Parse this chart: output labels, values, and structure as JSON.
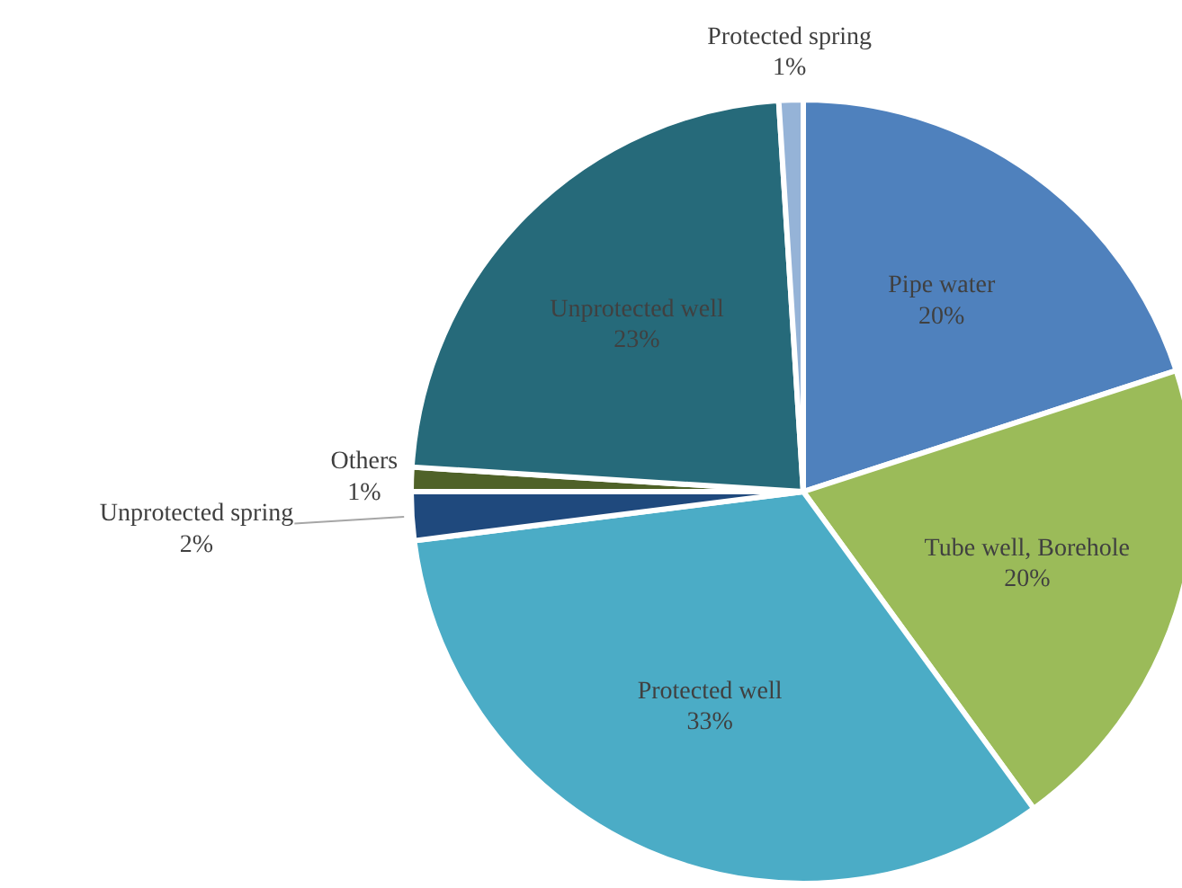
{
  "chart_data": {
    "type": "pie",
    "categories": [
      "Pipe water",
      "Tube well, Borehole",
      "Protected well",
      "Unprotected spring",
      "Others",
      "Unprotected well",
      "Protected spring"
    ],
    "values": [
      20,
      20,
      33,
      2,
      1,
      23,
      1
    ],
    "value_labels": [
      "20%",
      "20%",
      "33%",
      "2%",
      "1%",
      "23%",
      "1%"
    ],
    "colors": [
      "#4f81bd",
      "#9bbb59",
      "#4bacc6",
      "#1f497d",
      "#4f6228",
      "#266a7a",
      "#95b3d7"
    ]
  }
}
